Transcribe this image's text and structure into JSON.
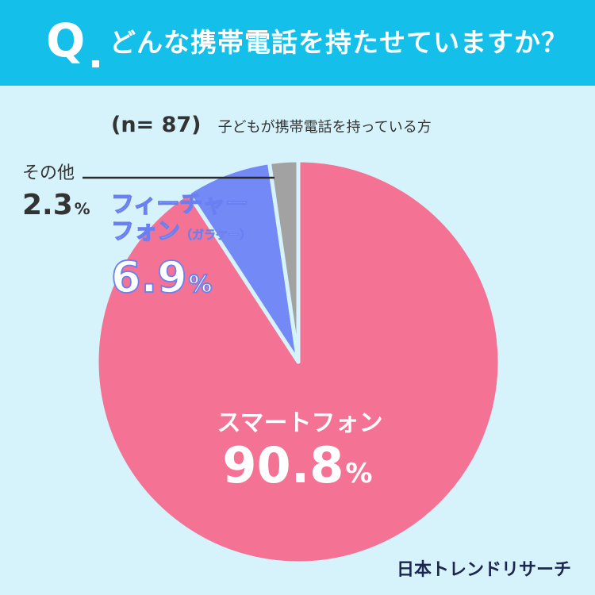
{
  "header": {
    "q_label": "Q",
    "question": "どんな携帯電話を持たせていますか？"
  },
  "sample": {
    "n_label": "(n= 87)",
    "description": "子どもが携帯電話を持っている方"
  },
  "chart_data": {
    "type": "pie",
    "start": "12 o'clock, clockwise",
    "slices": [
      {
        "label": "スマートフォン",
        "value": 90.8,
        "color": "#f47394"
      },
      {
        "label": "フィーチャーフォン（ガラケー）",
        "value": 6.9,
        "color": "#7289f6"
      },
      {
        "label": "その他",
        "value": 2.3,
        "color": "#a2a2a2"
      }
    ]
  },
  "labels": {
    "smartphone_name": "スマートフォン",
    "smartphone_value": "90.8",
    "feature_name_line1": "フィーチャー",
    "feature_name_line2": "フォン",
    "feature_name_sub": "（ガラケー）",
    "feature_value": "6.9",
    "other_name": "その他",
    "other_value": "2.3",
    "percent": "%"
  },
  "brand": {
    "logo": "日本トレンドリサーチ"
  },
  "colors": {
    "header": "#14bfe9",
    "background": "#d6f3fb",
    "slice_border": "#d6f3fb"
  }
}
